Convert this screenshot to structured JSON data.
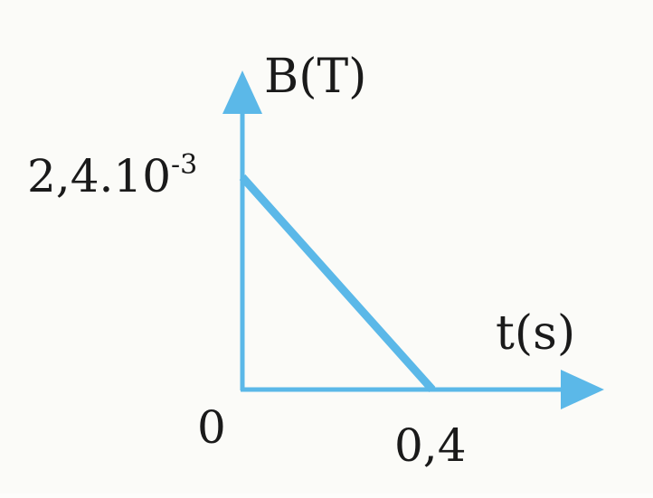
{
  "chart_data": {
    "type": "line",
    "ylabel": "B(T)",
    "xlabel": "t(s)",
    "origin_label": "0",
    "x_tick_labels": [
      "0,4"
    ],
    "y_tick_label": {
      "mantissa": "2,4.10",
      "exponent": "-3"
    },
    "series": [
      {
        "x": [
          0,
          0.4
        ],
        "y": [
          0.0024,
          0
        ]
      }
    ],
    "xlim": [
      0,
      0.4
    ],
    "ylim": [
      0,
      0.0024
    ],
    "grid": false,
    "colors": {
      "axis": "#5bb8e8",
      "line": "#5bb8e8"
    }
  }
}
